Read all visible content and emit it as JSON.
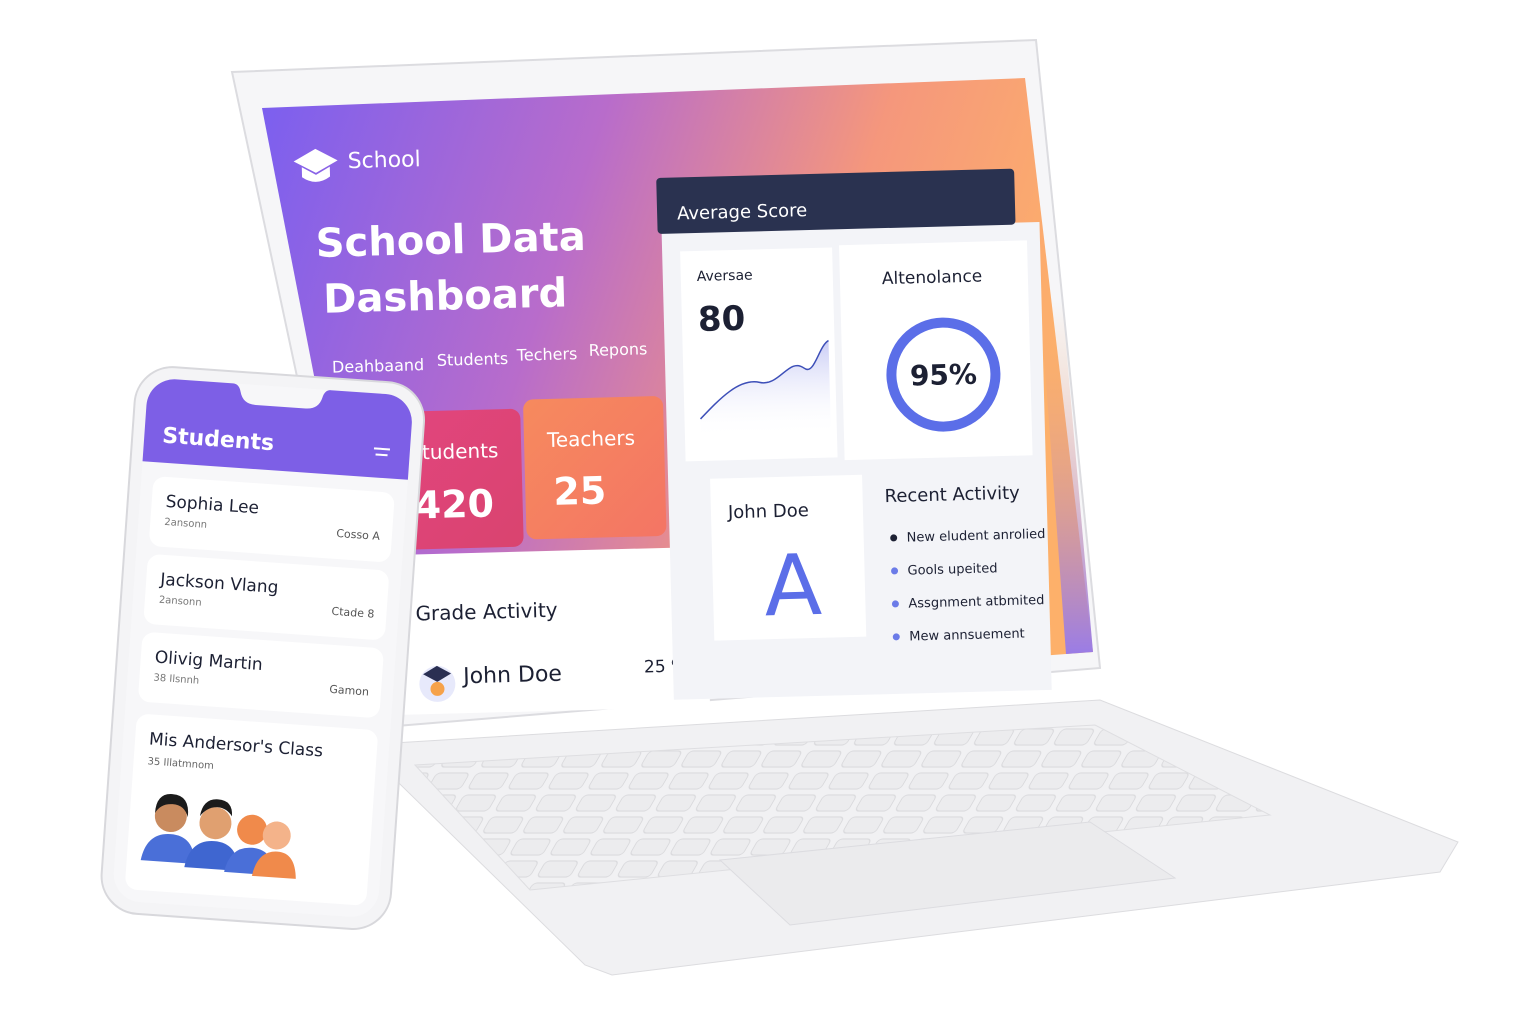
{
  "laptop": {
    "brand": "School",
    "title_line1": "School Data",
    "title_line2": "Dashboard",
    "nav": [
      "Deahbaand",
      "Students",
      "Techers",
      "Repons"
    ],
    "students_card": {
      "label": "Students",
      "value": "420"
    },
    "teachers_card": {
      "label": "Teachers",
      "value": "25"
    },
    "grade_activity": {
      "title": "Grade Activity",
      "name": "John Doe",
      "value": "25 %"
    },
    "average_score": {
      "title": "Average Score",
      "label": "Aversae",
      "value": "80"
    },
    "attendance": {
      "label": "Altenolance",
      "value": "95%"
    },
    "student_grade": {
      "name": "John Doe",
      "grade": "A"
    },
    "recent_activity": {
      "title": "Recent Activity",
      "items": [
        "New eludent anrolied",
        "Gools upeited",
        "Assgnment atbmited",
        "Mew annsuement"
      ]
    }
  },
  "phone": {
    "title": "Students",
    "list": [
      {
        "name": "Sophia Lee",
        "sub": "2ansonn",
        "tag": "Cosso A"
      },
      {
        "name": "Jackson Vlang",
        "sub": "2ansonn",
        "tag": "Ctade 8"
      },
      {
        "name": "Olivig Martin",
        "sub": "38 Ilsnnh",
        "tag": "Gamon"
      }
    ],
    "class": {
      "name": "Mis Andersor's Class",
      "sub": "35 Illatmnom"
    }
  }
}
